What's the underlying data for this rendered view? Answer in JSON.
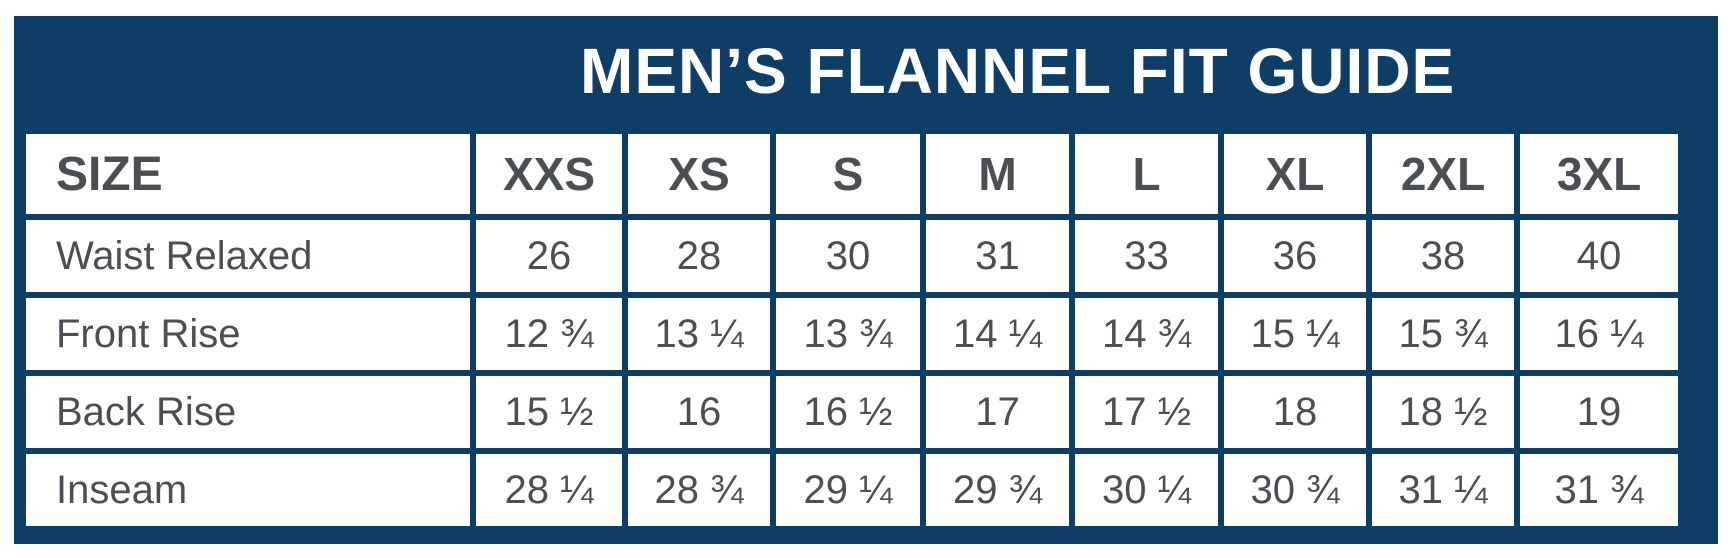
{
  "title": "MEN’S FLANNEL FIT GUIDE",
  "colors": {
    "frame": "#0e3d66",
    "cell_background": "#ffffff",
    "text": "#4b4f54",
    "title_text": "#ffffff"
  },
  "table": {
    "header": {
      "label": "SIZE",
      "sizes": [
        "XXS",
        "XS",
        "S",
        "M",
        "L",
        "XL",
        "2XL",
        "3XL"
      ]
    },
    "rows": [
      {
        "label": "Waist Relaxed",
        "values": [
          "26",
          "28",
          "30",
          "31",
          "33",
          "36",
          "38",
          "40"
        ]
      },
      {
        "label": "Front Rise",
        "values": [
          "12 ¾",
          "13 ¼",
          "13 ¾",
          "14 ¼",
          "14 ¾",
          "15 ¼",
          "15 ¾",
          "16 ¼"
        ]
      },
      {
        "label": "Back Rise",
        "values": [
          "15 ½",
          "16",
          "16 ½",
          "17",
          "17 ½",
          "18",
          "18 ½",
          "19"
        ]
      },
      {
        "label": "Inseam",
        "values": [
          "28 ¼",
          "28 ¾",
          "29 ¼",
          "29 ¾",
          "30 ¼",
          "30 ¾",
          "31 ¼",
          "31 ¾"
        ]
      }
    ]
  }
}
